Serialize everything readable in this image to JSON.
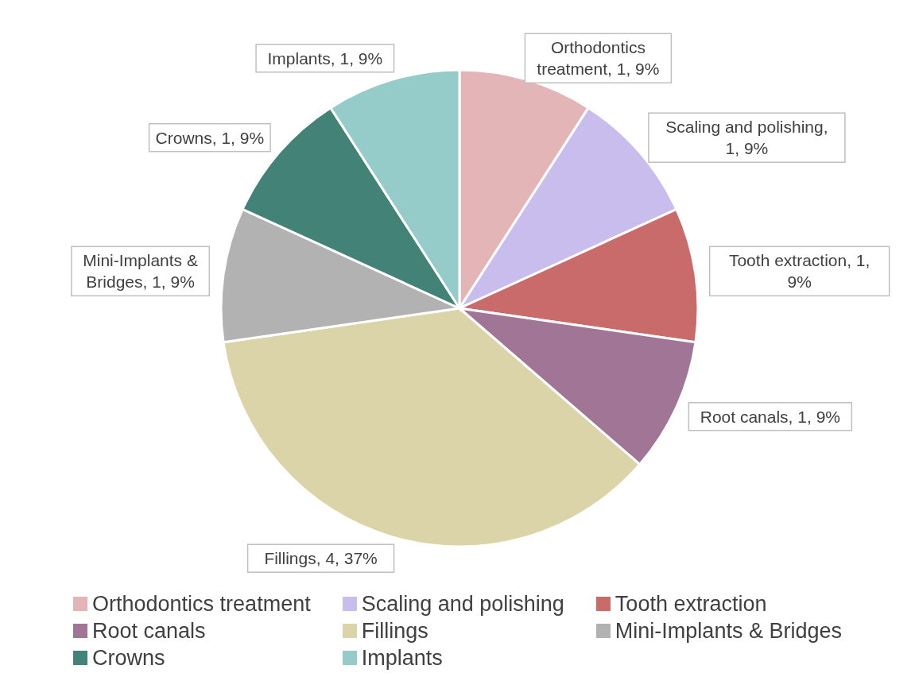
{
  "chart_data": {
    "type": "pie",
    "categories": [
      "Orthodontics treatment",
      "Scaling and polishing",
      "Tooth extraction",
      "Root canals",
      "Fillings",
      "Mini-Implants & Bridges",
      "Crowns",
      "Implants"
    ],
    "values": [
      1,
      1,
      1,
      1,
      4,
      1,
      1,
      1
    ],
    "value_labels": [
      "Orthodontics treatment, 1, 9%",
      "Scaling and polishing, 1, 9%",
      "Tooth extraction, 1, 9%",
      "Root canals, 1, 9%",
      "Fillings, 4, 37%",
      "Mini-Implants & Bridges, 1, 9%",
      "Crowns, 1, 9%",
      "Implants, 1, 9%"
    ],
    "colors": [
      "#e3b5b6",
      "#c9bdee",
      "#c96b6a",
      "#a07596",
      "#dbd4a8",
      "#b2b2b2",
      "#438276",
      "#95cbc8"
    ],
    "legend": "bottom"
  }
}
